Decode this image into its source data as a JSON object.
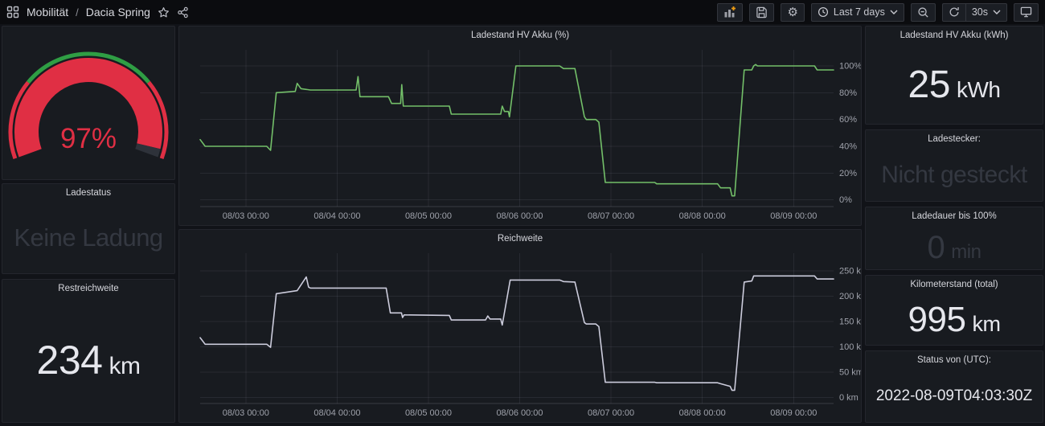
{
  "nav": {
    "breadcrumb": {
      "section": "Mobilität",
      "separator": "/",
      "page": "Dacia Spring"
    },
    "time_range_label": "Last 7 days",
    "refresh_interval_label": "30s"
  },
  "icons": [
    "apps-grid-icon",
    "star-icon",
    "share-icon",
    "add-panel-icon",
    "save-icon",
    "gear-icon",
    "clock-icon",
    "chevron-down-icon",
    "zoom-out-icon",
    "refresh-icon",
    "monitor-icon"
  ],
  "colors": {
    "page_bg": "#111318",
    "panel_bg": "#181b20",
    "nav_bg": "#0b0c0f",
    "green_line": "#73bf69",
    "white_line": "#ccccdc",
    "gauge_red": "#e02f44",
    "gauge_green": "#2f9e44",
    "gauge_empty": "#2e323a",
    "dim_text": "#343841",
    "bright_text": "#e6e7ed"
  },
  "gauge": {
    "value": 97,
    "display": "97%",
    "min": 0,
    "max": 100,
    "value_color": "#e02f44",
    "empty_color": "#2e323a",
    "thresholds": [
      {
        "from": 0,
        "to": 27,
        "color": "#e02f44"
      },
      {
        "from": 27,
        "to": 73,
        "color": "#2f9e44"
      },
      {
        "from": 73,
        "to": 100,
        "color": "#e02f44"
      }
    ]
  },
  "stats": {
    "ladestatus": {
      "title": "Ladestatus",
      "value": "Keine Ladung"
    },
    "restreichweite": {
      "title": "Restreichweite",
      "value": "234",
      "unit": "km"
    },
    "akku_kwh": {
      "title": "Ladestand HV Akku (kWh)",
      "value": "25",
      "unit": "kWh"
    },
    "ladestecker": {
      "title": "Ladestecker:",
      "value": "Nicht gesteckt"
    },
    "ladedauer": {
      "title": "Ladedauer bis 100%",
      "value": "0",
      "unit": "min"
    },
    "kilometerstand": {
      "title": "Kilometerstand (total)",
      "value": "995",
      "unit": "km"
    },
    "status_utc": {
      "title": "Status von (UTC):",
      "value": "2022-08-09T04:03:30Z"
    }
  },
  "chart_data": [
    {
      "type": "line",
      "title": "Ladestand HV Akku (%)",
      "series_name": "Ladestand HV Akku",
      "color": "#73bf69",
      "legend": "off",
      "grid": "on",
      "x_axis": {
        "unit": "hours since 2022-08-02 12:00",
        "range": [
          0,
          166.5
        ],
        "ticks": [
          12,
          36,
          60,
          84,
          108,
          132,
          156
        ],
        "tick_labels": [
          "08/03 00:00",
          "08/04 00:00",
          "08/05 00:00",
          "08/06 00:00",
          "08/07 00:00",
          "08/08 00:00",
          "08/09 00:00"
        ]
      },
      "y_axis": {
        "ticks": [
          0,
          20,
          40,
          60,
          80,
          100
        ],
        "tick_suffix": "%",
        "range": [
          -5,
          112
        ],
        "position": "right"
      },
      "points": [
        [
          0,
          45
        ],
        [
          1.3,
          40
        ],
        [
          17.5,
          40
        ],
        [
          18.5,
          37
        ],
        [
          20,
          80
        ],
        [
          25,
          81
        ],
        [
          25.5,
          87
        ],
        [
          26.5,
          83
        ],
        [
          29,
          82
        ],
        [
          41,
          82
        ],
        [
          41.5,
          92
        ],
        [
          42,
          77
        ],
        [
          49.5,
          77
        ],
        [
          50.3,
          72
        ],
        [
          52.7,
          72
        ],
        [
          53,
          86
        ],
        [
          53.4,
          70
        ],
        [
          65.5,
          70
        ],
        [
          66,
          64
        ],
        [
          79,
          64
        ],
        [
          79.4,
          70
        ],
        [
          80,
          66
        ],
        [
          81,
          66
        ],
        [
          81.3,
          62
        ],
        [
          83,
          100
        ],
        [
          94.5,
          100
        ],
        [
          95.5,
          98
        ],
        [
          98.5,
          98
        ],
        [
          101,
          62
        ],
        [
          101.5,
          60
        ],
        [
          104,
          60
        ],
        [
          104.8,
          58
        ],
        [
          106.5,
          13
        ],
        [
          119.5,
          13
        ],
        [
          120,
          12
        ],
        [
          136,
          12
        ],
        [
          136.8,
          9
        ],
        [
          139.3,
          9
        ],
        [
          139.8,
          3
        ],
        [
          140.5,
          3
        ],
        [
          143,
          97
        ],
        [
          145,
          97
        ],
        [
          145.5,
          100
        ],
        [
          146,
          101
        ],
        [
          146.5,
          100
        ],
        [
          161.5,
          100
        ],
        [
          162.2,
          97
        ],
        [
          166.5,
          97
        ]
      ]
    },
    {
      "type": "line",
      "title": "Reichweite",
      "series_name": "Reichweite",
      "color": "#ccccdc",
      "legend": "off",
      "grid": "on",
      "x_axis": {
        "unit": "hours since 2022-08-02 12:00",
        "range": [
          0,
          166.5
        ],
        "ticks": [
          12,
          36,
          60,
          84,
          108,
          132,
          156
        ],
        "tick_labels": [
          "08/03 00:00",
          "08/04 00:00",
          "08/05 00:00",
          "08/06 00:00",
          "08/07 00:00",
          "08/08 00:00",
          "08/09 00:00"
        ]
      },
      "y_axis": {
        "ticks": [
          0,
          50,
          100,
          150,
          200,
          250
        ],
        "tick_suffix": " km",
        "range": [
          -12,
          285
        ],
        "position": "right"
      },
      "points": [
        [
          0,
          118
        ],
        [
          1.3,
          105
        ],
        [
          17.5,
          105
        ],
        [
          18.5,
          99
        ],
        [
          20,
          205
        ],
        [
          25.5,
          211
        ],
        [
          27.9,
          238
        ],
        [
          28.5,
          218
        ],
        [
          29,
          216
        ],
        [
          48.9,
          216
        ],
        [
          50,
          167
        ],
        [
          52.9,
          167
        ],
        [
          53.2,
          158
        ],
        [
          53.6,
          163
        ],
        [
          65.5,
          162
        ],
        [
          66,
          153
        ],
        [
          75,
          153
        ],
        [
          75.6,
          161
        ],
        [
          76.2,
          155
        ],
        [
          79,
          155
        ],
        [
          79.4,
          143
        ],
        [
          81.5,
          232
        ],
        [
          94.5,
          232
        ],
        [
          95.5,
          229
        ],
        [
          98.5,
          228
        ],
        [
          101,
          148
        ],
        [
          101.5,
          145
        ],
        [
          104,
          145
        ],
        [
          104.8,
          140
        ],
        [
          106.5,
          30
        ],
        [
          119.5,
          30
        ],
        [
          120,
          29
        ],
        [
          136,
          29
        ],
        [
          136.8,
          27
        ],
        [
          139.3,
          22
        ],
        [
          139.8,
          14
        ],
        [
          140.5,
          14
        ],
        [
          143,
          228
        ],
        [
          145,
          230
        ],
        [
          145.5,
          240
        ],
        [
          146.5,
          240
        ],
        [
          161.5,
          240
        ],
        [
          162.2,
          234
        ],
        [
          166.5,
          234
        ]
      ]
    }
  ]
}
